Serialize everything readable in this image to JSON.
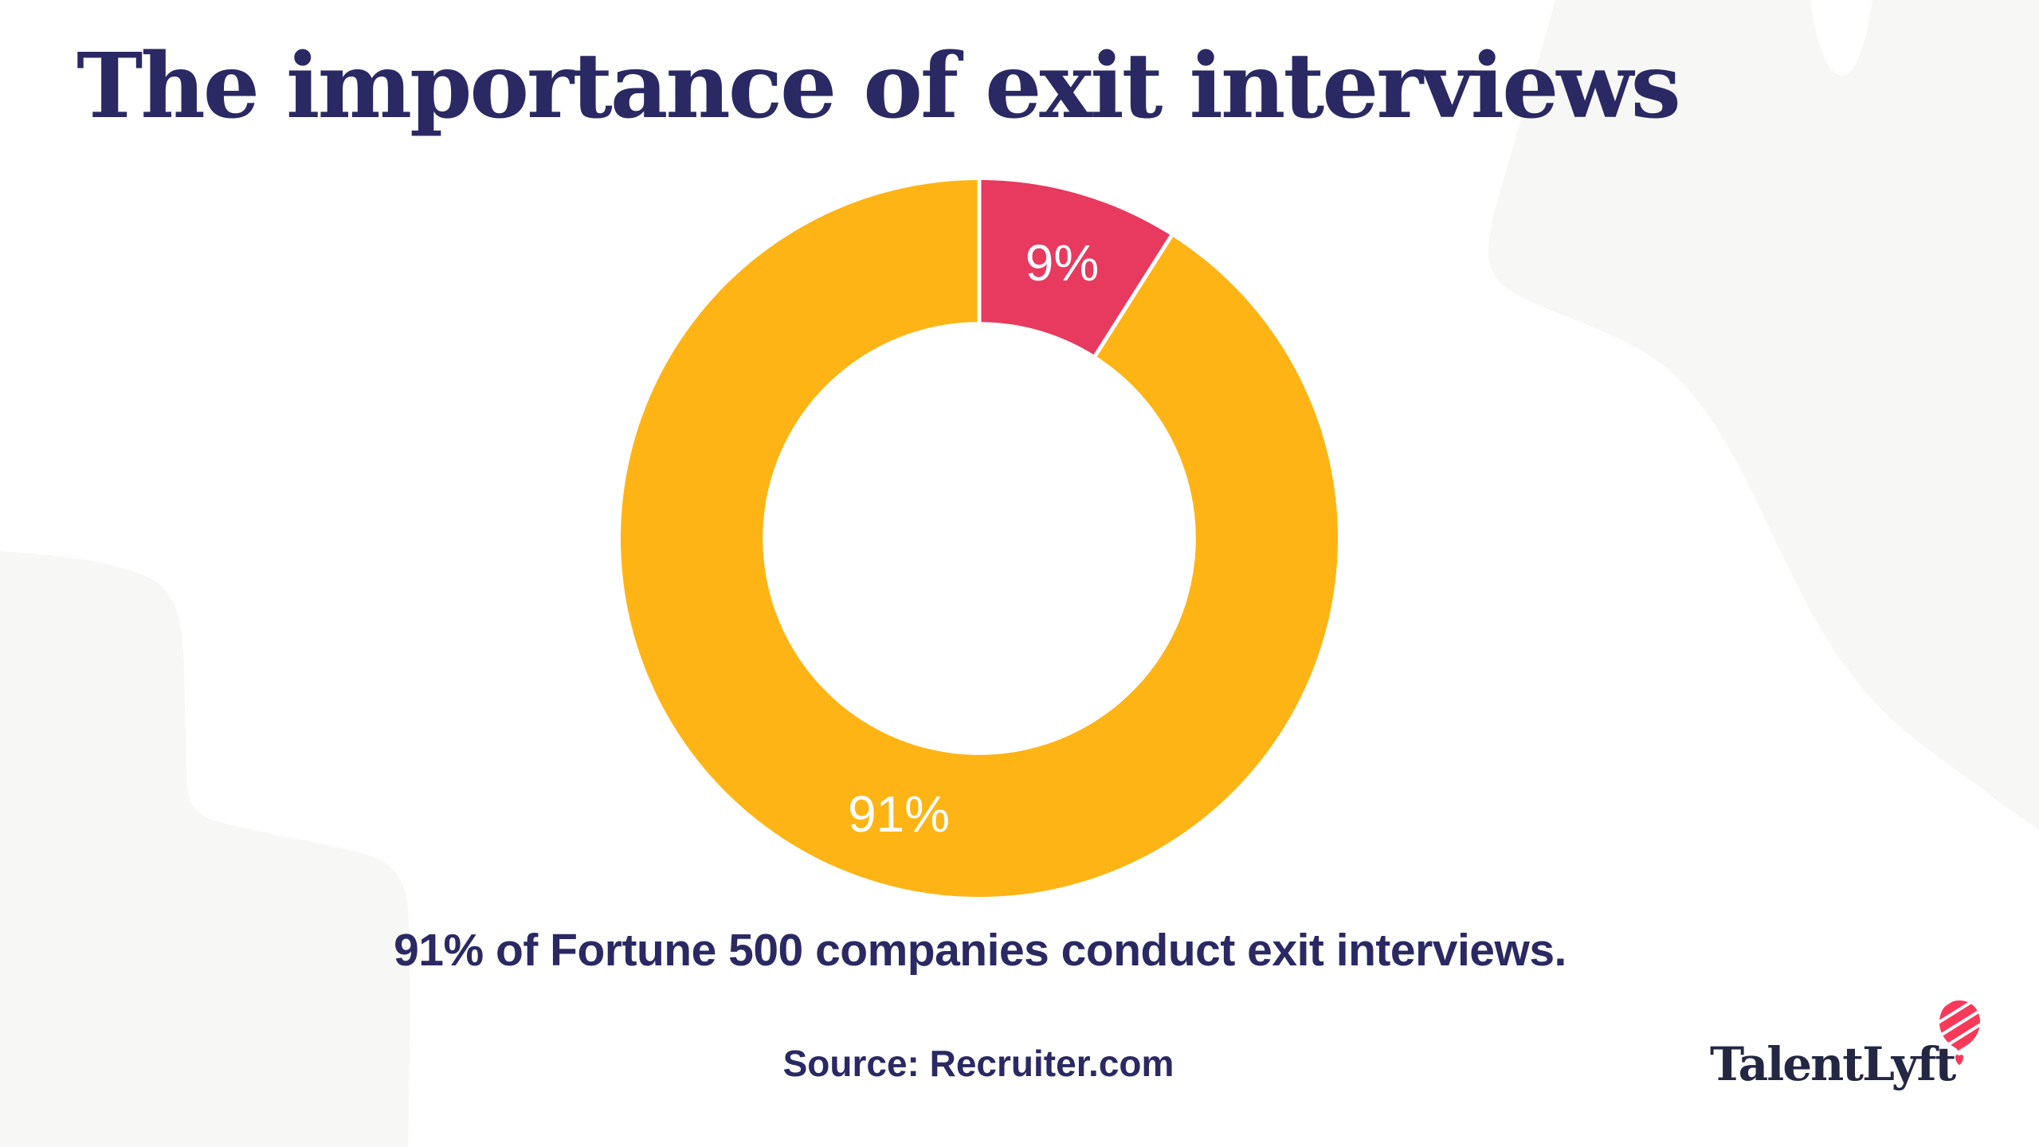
{
  "title": "The importance of exit interviews",
  "chart_data": {
    "type": "pie",
    "variant": "donut",
    "title": "The importance of exit interviews",
    "segments": [
      {
        "label": "9%",
        "value": 9,
        "color": "#E8395E"
      },
      {
        "label": "91%",
        "value": 91,
        "color": "#FDB414"
      }
    ],
    "start_angle_deg": 0,
    "direction": "clockwise",
    "inner_radius_ratio": 0.604,
    "slice_label_color": "#FFFFFF",
    "separator_color": "#FFFFFF",
    "legend": "none",
    "annotation": "91% of Fortune 500 companies conduct exit interviews."
  },
  "caption": "91% of Fortune 500 companies conduct exit interviews.",
  "source": "Source: Recruiter.com",
  "logo": {
    "text": "TalentLyft",
    "text_color": "#242742",
    "balloon_color": "#F8395A",
    "balloon_icon": "hot-air-balloon-icon"
  },
  "colors": {
    "navy": "#2A2963",
    "background": "#FFFFFF",
    "blob_gray": "#F7F7F6"
  }
}
